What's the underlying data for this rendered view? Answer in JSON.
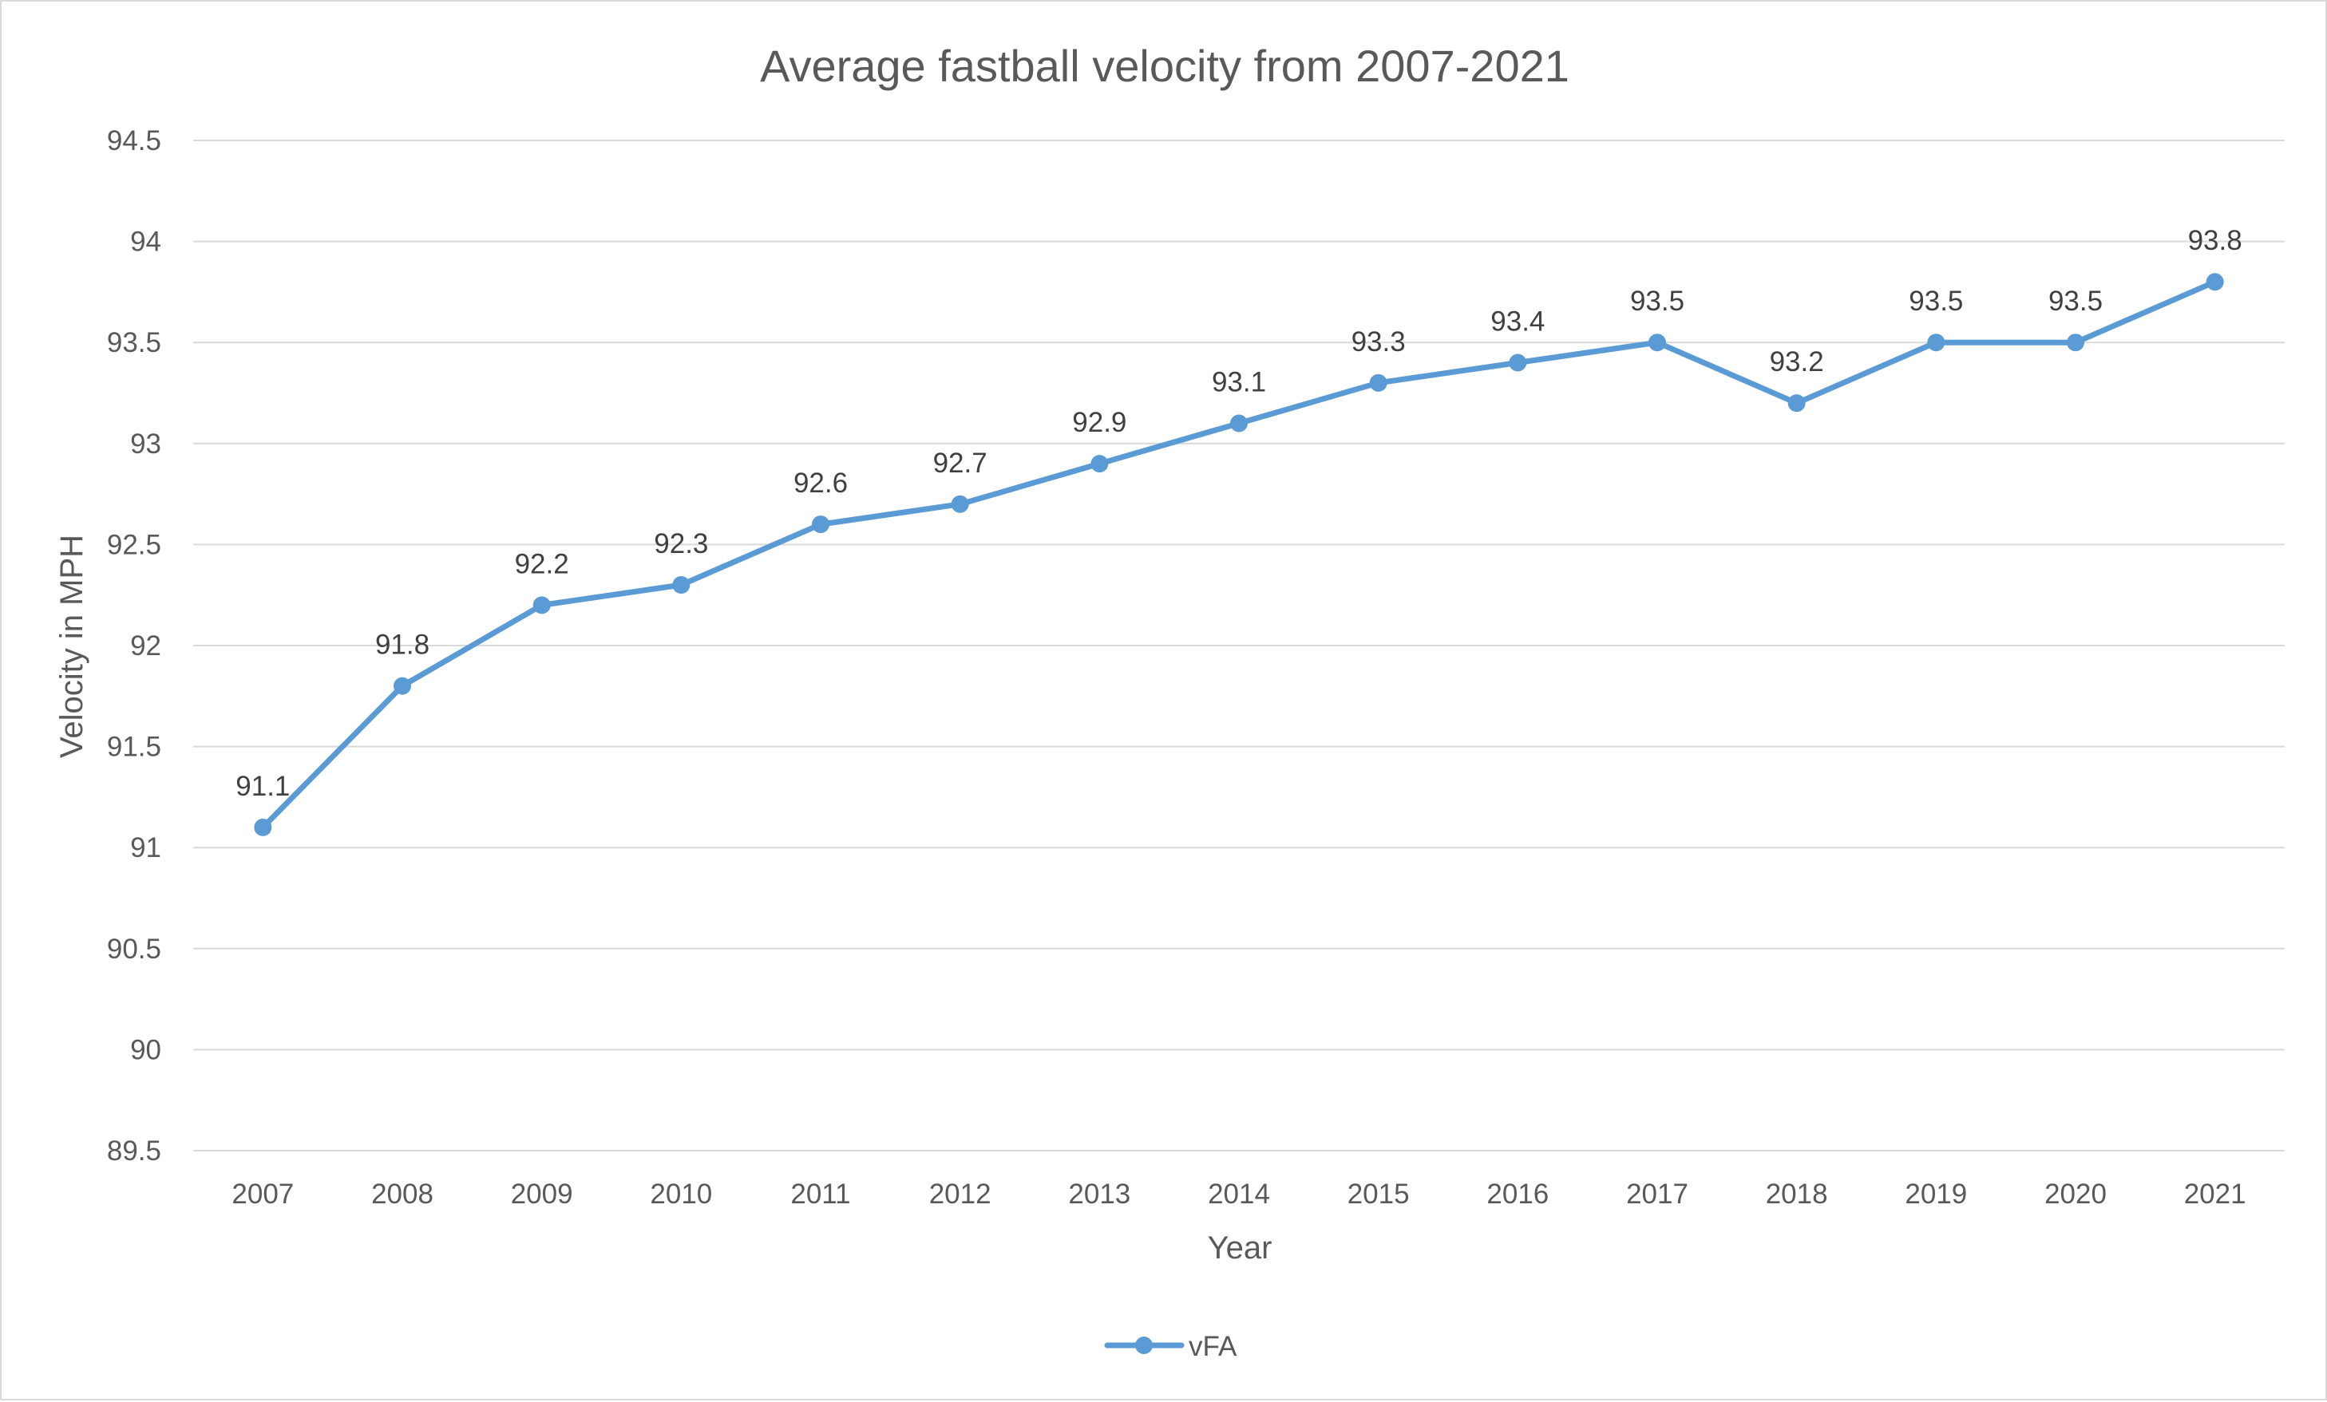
{
  "chart_data": {
    "type": "line",
    "title": "Average fastball velocity from 2007-2021",
    "xlabel": "Year",
    "ylabel": "Velocity in MPH",
    "categories": [
      "2007",
      "2008",
      "2009",
      "2010",
      "2011",
      "2012",
      "2013",
      "2014",
      "2015",
      "2016",
      "2017",
      "2018",
      "2019",
      "2020",
      "2021"
    ],
    "series": [
      {
        "name": "vFA",
        "values": [
          91.1,
          91.8,
          92.2,
          92.3,
          92.6,
          92.7,
          92.9,
          93.1,
          93.3,
          93.4,
          93.5,
          93.2,
          93.5,
          93.5,
          93.8
        ],
        "color": "#5b9bd5"
      }
    ],
    "ylim": [
      89.5,
      94.5
    ],
    "yticks": [
      89.5,
      90,
      90.5,
      91,
      91.5,
      92,
      92.5,
      93,
      93.5,
      94,
      94.5
    ],
    "ytick_labels": [
      "89.5",
      "90",
      "90.5",
      "91",
      "91.5",
      "92",
      "92.5",
      "93",
      "93.5",
      "94",
      "94.5"
    ],
    "grid": true,
    "legend_position": "bottom"
  }
}
